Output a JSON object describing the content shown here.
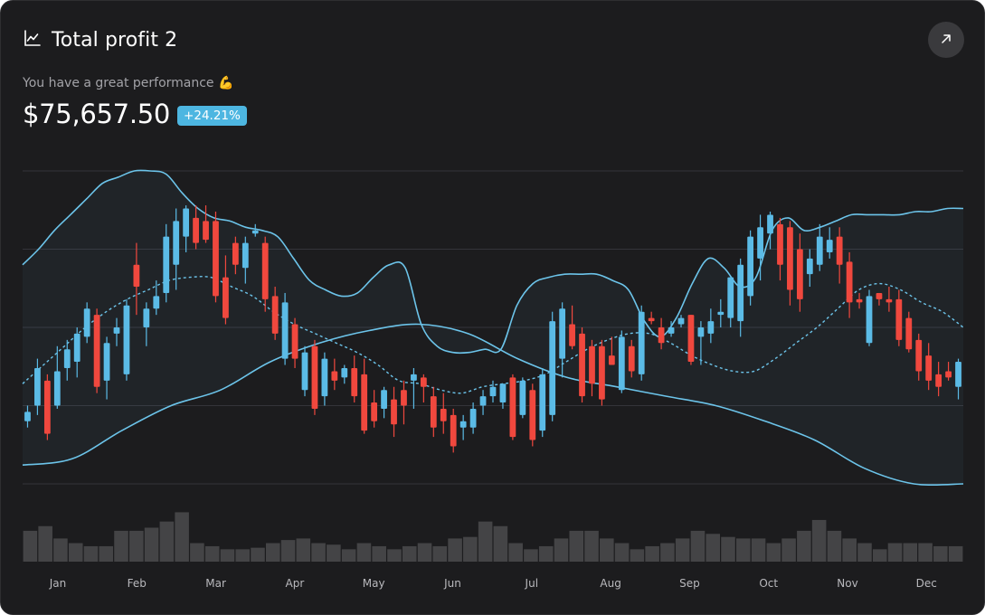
{
  "card": {
    "title": "Total profit 2",
    "title_icon": "line-chart-icon",
    "expand_icon": "arrow-up-right-icon",
    "subtitle": "You have a great performance 💪",
    "value": "$75,657.50",
    "change_badge": "+24.21%"
  },
  "colors": {
    "up": "#5bbbe6",
    "down": "#f0483e",
    "band": "#6cc4ea",
    "volume": "#444446",
    "grid": "#34343a",
    "axis_text": "#b9b9bd"
  },
  "chart_data": {
    "type": "candlestick",
    "x_tick_labels": [
      "Jan",
      "Feb",
      "Mar",
      "Apr",
      "May",
      "Jun",
      "Jul",
      "Aug",
      "Sep",
      "Oct",
      "Nov",
      "Dec"
    ],
    "grid": true,
    "overlays": [
      "bollinger-upper",
      "bollinger-middle (dashed)",
      "bollinger-lower",
      "volume-bars"
    ],
    "ylim": [
      0,
      100
    ],
    "candles": [
      {
        "o": 20,
        "h": 25,
        "l": 18,
        "c": 23
      },
      {
        "o": 25,
        "h": 40,
        "l": 22,
        "c": 37
      },
      {
        "o": 33,
        "h": 35,
        "l": 14,
        "c": 16
      },
      {
        "o": 25,
        "h": 44,
        "l": 24,
        "c": 36
      },
      {
        "o": 37,
        "h": 46,
        "l": 33,
        "c": 43
      },
      {
        "o": 39,
        "h": 50,
        "l": 34,
        "c": 48
      },
      {
        "o": 47,
        "h": 58,
        "l": 45,
        "c": 56
      },
      {
        "o": 54,
        "h": 56,
        "l": 29,
        "c": 31
      },
      {
        "o": 33,
        "h": 47,
        "l": 27,
        "c": 45
      },
      {
        "o": 48,
        "h": 53,
        "l": 44,
        "c": 50
      },
      {
        "o": 35,
        "h": 59,
        "l": 33,
        "c": 57
      },
      {
        "o": 70,
        "h": 77,
        "l": 54,
        "c": 63
      },
      {
        "o": 50,
        "h": 58,
        "l": 44,
        "c": 56
      },
      {
        "o": 56,
        "h": 65,
        "l": 54,
        "c": 60
      },
      {
        "o": 61,
        "h": 83,
        "l": 58,
        "c": 79
      },
      {
        "o": 70,
        "h": 88,
        "l": 62,
        "c": 84
      },
      {
        "o": 79,
        "h": 89,
        "l": 74,
        "c": 88
      },
      {
        "o": 85,
        "h": 89,
        "l": 75,
        "c": 77
      },
      {
        "o": 84,
        "h": 89,
        "l": 77,
        "c": 78
      },
      {
        "o": 84,
        "h": 87,
        "l": 58,
        "c": 60
      },
      {
        "o": 66,
        "h": 73,
        "l": 51,
        "c": 53
      },
      {
        "o": 77,
        "h": 79,
        "l": 67,
        "c": 70
      },
      {
        "o": 69,
        "h": 79,
        "l": 64,
        "c": 77
      },
      {
        "o": 80,
        "h": 83,
        "l": 79,
        "c": 81
      },
      {
        "o": 77,
        "h": 79,
        "l": 55,
        "c": 59
      },
      {
        "o": 60,
        "h": 63,
        "l": 46,
        "c": 48
      },
      {
        "o": 40,
        "h": 61,
        "l": 38,
        "c": 58
      },
      {
        "o": 51,
        "h": 53,
        "l": 37,
        "c": 40
      },
      {
        "o": 30,
        "h": 44,
        "l": 28,
        "c": 42
      },
      {
        "o": 44,
        "h": 46,
        "l": 22,
        "c": 24
      },
      {
        "o": 28,
        "h": 42,
        "l": 25,
        "c": 40
      },
      {
        "o": 36,
        "h": 40,
        "l": 30,
        "c": 33
      },
      {
        "o": 34,
        "h": 38,
        "l": 32,
        "c": 37
      },
      {
        "o": 37,
        "h": 41,
        "l": 26,
        "c": 28
      },
      {
        "o": 35,
        "h": 40,
        "l": 16,
        "c": 17
      },
      {
        "o": 26,
        "h": 30,
        "l": 18,
        "c": 20
      },
      {
        "o": 24,
        "h": 31,
        "l": 21,
        "c": 30
      },
      {
        "o": 27,
        "h": 31,
        "l": 15,
        "c": 19
      },
      {
        "o": 30,
        "h": 33,
        "l": 19,
        "c": 25
      },
      {
        "o": 33,
        "h": 37,
        "l": 24,
        "c": 35
      },
      {
        "o": 34,
        "h": 35,
        "l": 26,
        "c": 31
      },
      {
        "o": 28,
        "h": 31,
        "l": 15,
        "c": 18
      },
      {
        "o": 24,
        "h": 29,
        "l": 16,
        "c": 20
      },
      {
        "o": 22,
        "h": 24,
        "l": 10,
        "c": 12
      },
      {
        "o": 18,
        "h": 22,
        "l": 14,
        "c": 20
      },
      {
        "o": 18,
        "h": 26,
        "l": 16,
        "c": 24
      },
      {
        "o": 25,
        "h": 30,
        "l": 22,
        "c": 28
      },
      {
        "o": 28,
        "h": 33,
        "l": 26,
        "c": 31
      },
      {
        "o": 26,
        "h": 32,
        "l": 24,
        "c": 32
      },
      {
        "o": 34,
        "h": 35,
        "l": 14,
        "c": 15
      },
      {
        "o": 22,
        "h": 34,
        "l": 21,
        "c": 33
      },
      {
        "o": 30,
        "h": 32,
        "l": 12,
        "c": 14
      },
      {
        "o": 17,
        "h": 37,
        "l": 15,
        "c": 35
      },
      {
        "o": 22,
        "h": 55,
        "l": 20,
        "c": 52
      },
      {
        "o": 40,
        "h": 58,
        "l": 34,
        "c": 56
      },
      {
        "o": 51,
        "h": 57,
        "l": 43,
        "c": 44
      },
      {
        "o": 48,
        "h": 50,
        "l": 26,
        "c": 28
      },
      {
        "o": 44,
        "h": 46,
        "l": 28,
        "c": 32
      },
      {
        "o": 44,
        "h": 46,
        "l": 25,
        "c": 27
      },
      {
        "o": 41,
        "h": 47,
        "l": 38,
        "c": 38
      },
      {
        "o": 30,
        "h": 49,
        "l": 29,
        "c": 47
      },
      {
        "o": 44,
        "h": 46,
        "l": 34,
        "c": 36
      },
      {
        "o": 35,
        "h": 57,
        "l": 33,
        "c": 55
      },
      {
        "o": 53,
        "h": 55,
        "l": 51,
        "c": 52
      },
      {
        "o": 50,
        "h": 53,
        "l": 43,
        "c": 45
      },
      {
        "o": 48,
        "h": 52,
        "l": 47,
        "c": 50
      },
      {
        "o": 51,
        "h": 54,
        "l": 50,
        "c": 53
      },
      {
        "o": 54,
        "h": 54,
        "l": 38,
        "c": 39
      },
      {
        "o": 47,
        "h": 52,
        "l": 38,
        "c": 50
      },
      {
        "o": 48,
        "h": 56,
        "l": 45,
        "c": 52
      },
      {
        "o": 54,
        "h": 59,
        "l": 50,
        "c": 55
      },
      {
        "o": 53,
        "h": 66,
        "l": 50,
        "c": 66
      },
      {
        "o": 52,
        "h": 72,
        "l": 47,
        "c": 70
      },
      {
        "o": 60,
        "h": 81,
        "l": 57,
        "c": 79
      },
      {
        "o": 72,
        "h": 86,
        "l": 65,
        "c": 82
      },
      {
        "o": 80,
        "h": 87,
        "l": 75,
        "c": 86
      },
      {
        "o": 83,
        "h": 85,
        "l": 65,
        "c": 70
      },
      {
        "o": 82,
        "h": 84,
        "l": 57,
        "c": 62
      },
      {
        "o": 75,
        "h": 80,
        "l": 55,
        "c": 59
      },
      {
        "o": 67,
        "h": 75,
        "l": 63,
        "c": 72
      },
      {
        "o": 70,
        "h": 83,
        "l": 68,
        "c": 79
      },
      {
        "o": 74,
        "h": 82,
        "l": 72,
        "c": 78
      },
      {
        "o": 79,
        "h": 82,
        "l": 64,
        "c": 70
      },
      {
        "o": 71,
        "h": 74,
        "l": 53,
        "c": 58
      },
      {
        "o": 59,
        "h": 61,
        "l": 56,
        "c": 58
      },
      {
        "o": 45,
        "h": 62,
        "l": 44,
        "c": 60
      },
      {
        "o": 61,
        "h": 61,
        "l": 57,
        "c": 59
      },
      {
        "o": 59,
        "h": 63,
        "l": 55,
        "c": 58
      },
      {
        "o": 59,
        "h": 62,
        "l": 44,
        "c": 46
      },
      {
        "o": 53,
        "h": 55,
        "l": 42,
        "c": 43
      },
      {
        "o": 46,
        "h": 48,
        "l": 33,
        "c": 36
      },
      {
        "o": 41,
        "h": 45,
        "l": 30,
        "c": 33
      },
      {
        "o": 35,
        "h": 39,
        "l": 28,
        "c": 31
      },
      {
        "o": 36,
        "h": 39,
        "l": 33,
        "c": 34
      },
      {
        "o": 31,
        "h": 40,
        "l": 27,
        "c": 39
      }
    ],
    "upper_band": [
      70,
      75,
      81,
      86,
      91,
      96,
      98,
      100,
      100,
      99,
      93,
      88,
      85,
      84,
      82,
      81,
      79,
      72,
      65,
      62,
      60,
      61,
      66,
      70,
      69,
      51,
      44,
      42,
      42,
      43,
      43,
      57,
      64,
      66,
      67,
      67,
      67,
      65,
      62,
      52,
      47,
      53,
      64,
      72,
      69,
      63,
      66,
      81,
      85,
      81,
      82,
      84,
      86,
      86,
      86,
      86,
      87,
      87,
      88,
      88
    ],
    "middle_band": [
      32,
      38,
      44,
      50,
      55,
      59,
      62,
      65,
      66,
      66,
      63,
      60,
      55,
      51,
      48,
      45,
      42,
      38,
      33,
      32,
      30,
      29,
      31,
      32,
      33,
      35,
      39,
      43,
      46,
      48,
      48,
      45,
      41,
      38,
      36,
      36,
      40,
      45,
      50,
      56,
      62,
      64,
      62,
      58,
      55,
      50
    ],
    "lower_band": [
      6,
      8,
      17,
      25,
      30,
      39,
      45,
      49,
      51,
      48,
      40,
      34,
      31,
      28,
      25,
      20,
      14,
      5,
      0,
      0
    ],
    "volume": [
      2.0,
      2.3,
      1.5,
      1.2,
      1.0,
      1.0,
      2.0,
      2.0,
      2.2,
      2.6,
      3.2,
      1.2,
      1.0,
      0.8,
      0.8,
      0.9,
      1.2,
      1.4,
      1.5,
      1.2,
      1.1,
      0.8,
      1.2,
      1.0,
      0.8,
      1.0,
      1.2,
      1.0,
      1.5,
      1.6,
      2.6,
      2.3,
      1.2,
      0.8,
      1.0,
      1.5,
      2.0,
      2.0,
      1.5,
      1.2,
      0.8,
      1.0,
      1.2,
      1.5,
      2.0,
      1.8,
      1.6,
      1.5,
      1.5,
      1.2,
      1.5,
      2.0,
      2.7,
      2.0,
      1.5,
      1.2,
      0.8,
      1.2,
      1.2,
      1.2,
      1.0,
      1.0
    ]
  }
}
